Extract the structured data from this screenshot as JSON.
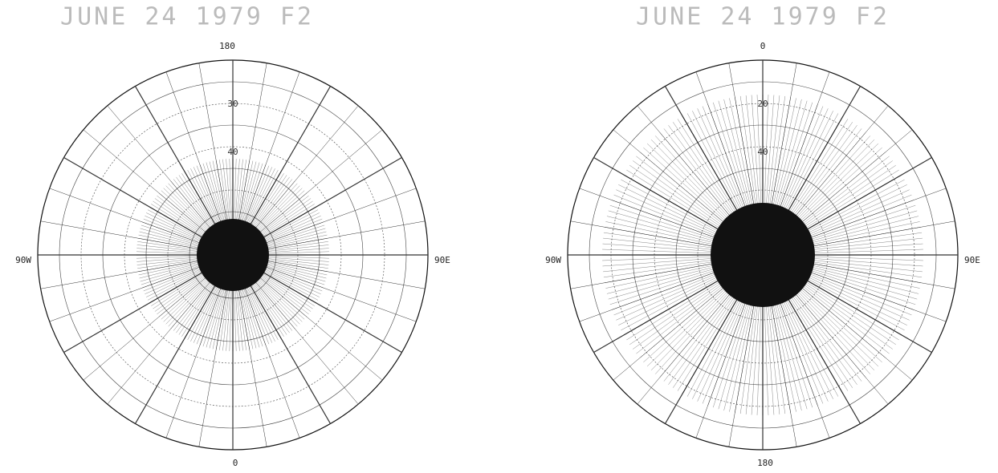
{
  "maps": [
    {
      "title": "JUNE 24 1979 F2",
      "labels": {
        "top": "180",
        "bottom": "0",
        "left": "90W",
        "right": "90E"
      },
      "inner_labels": [
        "30",
        "40"
      ]
    },
    {
      "title": "JUNE 24 1979 F2",
      "labels": {
        "top": "0",
        "bottom": "180",
        "left": "90W",
        "right": "90E"
      },
      "inner_labels": [
        "20",
        "40"
      ]
    }
  ]
}
